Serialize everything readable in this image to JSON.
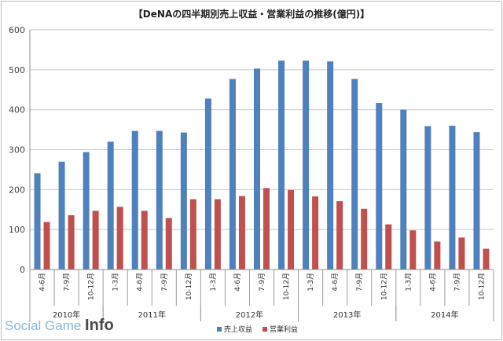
{
  "chart_data": {
    "type": "bar",
    "title": "【DeNAの四半期別売上収益・営業利益の推移(億円)】",
    "ylim": [
      0,
      600
    ],
    "yticks": [
      0,
      100,
      200,
      300,
      400,
      500,
      600
    ],
    "grid": true,
    "legend_position": "bottom",
    "categories": [
      "4-6月",
      "7-9月",
      "10-12月",
      "1-3月",
      "4-6月",
      "7-9月",
      "10-12月",
      "1-3月",
      "4-6月",
      "7-9月",
      "10-12月",
      "1-3月",
      "4-6月",
      "7-9月",
      "10-12月",
      "1-3月",
      "4-6月",
      "7-9月",
      "10-12月"
    ],
    "year_groups": [
      {
        "label": "2010年",
        "start": 0,
        "count": 3
      },
      {
        "label": "2011年",
        "start": 3,
        "count": 4
      },
      {
        "label": "2012年",
        "start": 7,
        "count": 4
      },
      {
        "label": "2013年",
        "start": 11,
        "count": 4
      },
      {
        "label": "2014年",
        "start": 15,
        "count": 4
      }
    ],
    "series": [
      {
        "name": "売上収益",
        "color": "#4f81bd",
        "values": [
          241,
          270,
          294,
          320,
          347,
          347,
          343,
          428,
          477,
          503,
          523,
          523,
          521,
          477,
          417,
          400,
          359,
          360,
          344
        ]
      },
      {
        "name": "営業利益",
        "color": "#c0504d",
        "values": [
          119,
          136,
          147,
          157,
          147,
          129,
          176,
          176,
          184,
          204,
          199,
          183,
          171,
          152,
          113,
          98,
          70,
          80,
          52
        ]
      }
    ]
  },
  "watermark": {
    "part1": "Social Game ",
    "part2": "Info"
  }
}
